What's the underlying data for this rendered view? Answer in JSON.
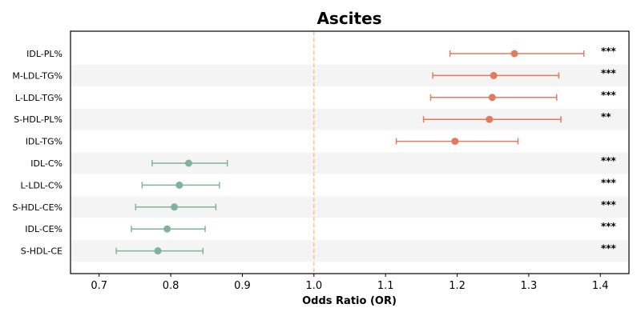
{
  "chart_data": {
    "type": "scatter",
    "subtype": "forest-plot",
    "title": "Ascites",
    "xlabel": "Odds Ratio (OR)",
    "ylabel": "",
    "xlim": [
      0.66,
      1.44
    ],
    "xticks": [
      "0.7",
      "0.8",
      "0.9",
      "1.0",
      "1.1",
      "1.2",
      "1.3",
      "1.4"
    ],
    "reference_line": 1.0,
    "colors": {
      "risk": "#E07B5F",
      "protective": "#7FB49A",
      "reference": "#F5C77E",
      "band": "#F4F4F4",
      "text": "#000000"
    },
    "rows": [
      {
        "label": "IDL-PL%",
        "or": 1.28,
        "lower": 1.19,
        "upper": 1.377,
        "sig": "***",
        "group": "risk"
      },
      {
        "label": "M-LDL-TG%",
        "or": 1.251,
        "lower": 1.166,
        "upper": 1.342,
        "sig": "***",
        "group": "risk"
      },
      {
        "label": "L-LDL-TG%",
        "or": 1.249,
        "lower": 1.163,
        "upper": 1.339,
        "sig": "***",
        "group": "risk"
      },
      {
        "label": "S-HDL-PL%",
        "or": 1.245,
        "lower": 1.153,
        "upper": 1.345,
        "sig": "**",
        "group": "risk"
      },
      {
        "label": "IDL-TG%",
        "or": 1.197,
        "lower": 1.115,
        "upper": 1.285,
        "sig": "",
        "group": "risk"
      },
      {
        "label": "IDL-C%",
        "or": 0.825,
        "lower": 0.774,
        "upper": 0.879,
        "sig": "***",
        "group": "protective"
      },
      {
        "label": "L-LDL-C%",
        "or": 0.812,
        "lower": 0.76,
        "upper": 0.868,
        "sig": "***",
        "group": "protective"
      },
      {
        "label": "S-HDL-CE%",
        "or": 0.805,
        "lower": 0.751,
        "upper": 0.863,
        "sig": "***",
        "group": "protective"
      },
      {
        "label": "IDL-CE%",
        "or": 0.795,
        "lower": 0.745,
        "upper": 0.848,
        "sig": "***",
        "group": "protective"
      },
      {
        "label": "S-HDL-CE",
        "or": 0.782,
        "lower": 0.724,
        "upper": 0.845,
        "sig": "***",
        "group": "protective"
      }
    ]
  }
}
